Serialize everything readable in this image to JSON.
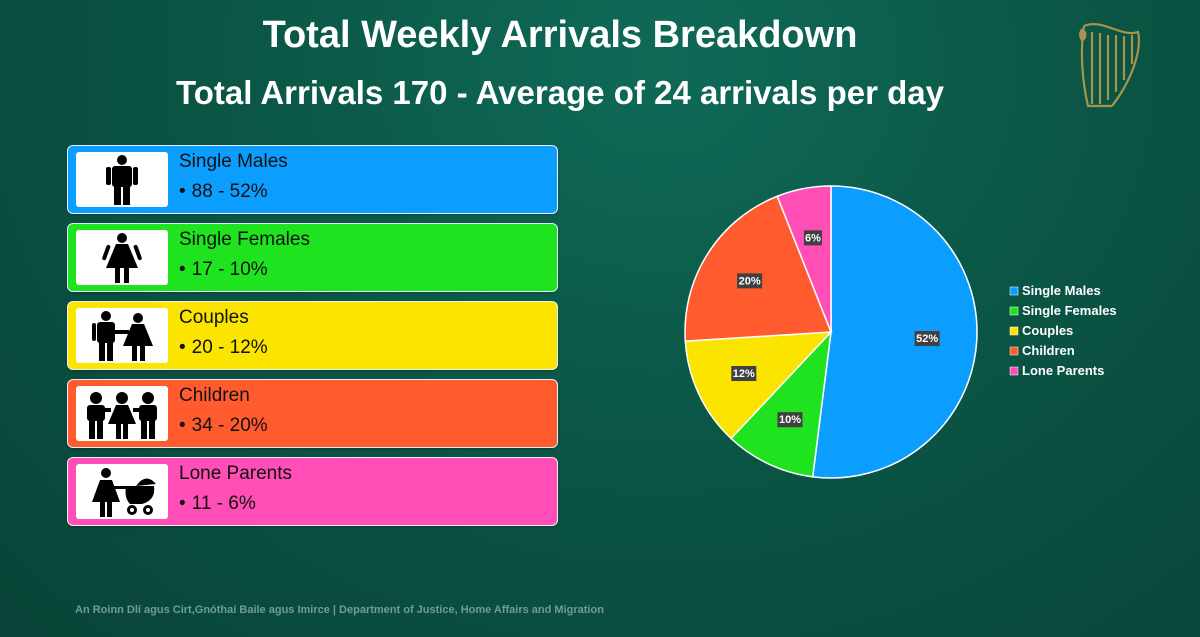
{
  "title": "Total Weekly Arrivals Breakdown",
  "subtitle": "Total Arrivals 170 - Average of 24 arrivals per day",
  "footer": "An Roinn Dlí agus Cirt,Gnóthaí Baile agus Imirce | Department of Justice, Home Affairs and Migration",
  "cards": [
    {
      "label": "Single Males",
      "value": "88 - 52%",
      "color": "#0b9eff",
      "icon": "single-male-icon"
    },
    {
      "label": "Single Females",
      "value": "17 - 10%",
      "color": "#1ee31e",
      "icon": "single-female-icon"
    },
    {
      "label": "Couples",
      "value": "20 - 12%",
      "color": "#fae400",
      "icon": "couple-icon"
    },
    {
      "label": "Children",
      "value": "34 - 20%",
      "color": "#ff5b2e",
      "icon": "children-icon"
    },
    {
      "label": "Lone Parents",
      "value": "11 - 6%",
      "color": "#ff4eb5",
      "icon": "lone-parent-icon"
    }
  ],
  "chart_data": {
    "type": "pie",
    "categories": [
      "Single Males",
      "Single Females",
      "Couples",
      "Children",
      "Lone Parents"
    ],
    "values": [
      52,
      10,
      12,
      20,
      6
    ],
    "data_labels": [
      "52%",
      "10%",
      "12%",
      "20%",
      "6%"
    ],
    "colors": [
      "#0b9eff",
      "#1ee31e",
      "#fae400",
      "#ff5b2e",
      "#ff4eb5"
    ],
    "legend": "right",
    "title": ""
  }
}
